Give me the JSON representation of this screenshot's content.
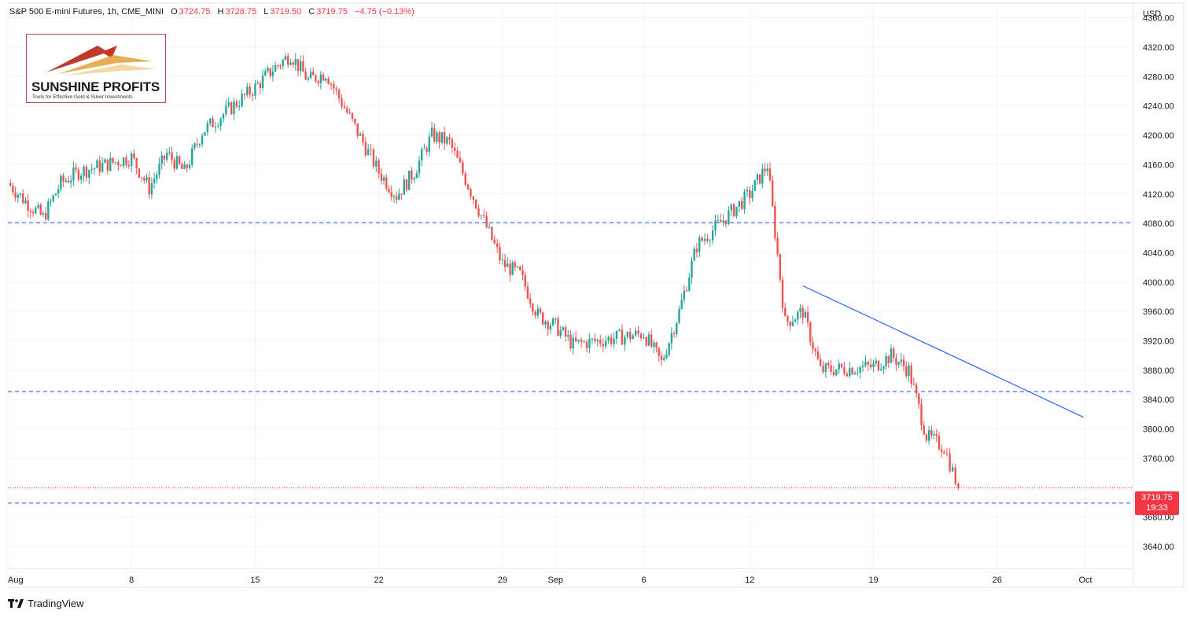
{
  "header": {
    "title": "S&P 500 E-mini Futures, 1h, CME_MINI",
    "open_label": "O",
    "open": "3724.75",
    "high_label": "H",
    "high": "3728.75",
    "low_label": "L",
    "low": "3719.50",
    "close_label": "C",
    "close": "3719.75",
    "change": "−4.75 (−0.13%)"
  },
  "logo": {
    "name": "SUNSHINE PROFITS",
    "tagline": "Tools for Effective Gold & Silver Investments"
  },
  "footer": {
    "brand": "TradingView"
  },
  "price_badge": {
    "price": "3719.75",
    "countdown": "19:33"
  },
  "colors": {
    "up": "#26a69a",
    "down": "#ef5350",
    "line": "#2962ff",
    "level": "#1e53e5",
    "badge": "#f23645"
  },
  "chart_data": {
    "type": "candlestick",
    "currency_label": "USD",
    "ylim": [
      3610,
      4380
    ],
    "y_ticks": [
      "3640.00",
      "3680.00",
      "3760.00",
      "3800.00",
      "3840.00",
      "3880.00",
      "3920.00",
      "3960.00",
      "4000.00",
      "4040.00",
      "4080.00",
      "4120.00",
      "4160.00",
      "4200.00",
      "4240.00",
      "4280.00",
      "4320.00",
      "4360.00"
    ],
    "x_ticks": [
      "Aug",
      "8",
      "15",
      "22",
      "29",
      "Sep",
      "6",
      "12",
      "19",
      "26",
      "Oct"
    ],
    "horizontal_levels": [
      4081,
      3851,
      3699
    ],
    "last_price": 3719.75,
    "trendline": {
      "from": [
        "Sep 15",
        3995
      ],
      "to": [
        "Sep 30",
        3816
      ]
    },
    "path_keypoints": [
      [
        "Aug 1",
        4135
      ],
      [
        "Aug 2",
        4110
      ],
      [
        "Aug 3",
        4088
      ],
      [
        "Aug 4",
        4135
      ],
      [
        "Aug 5",
        4150
      ],
      [
        "Aug 8",
        4170
      ],
      [
        "Aug 9",
        4128
      ],
      [
        "Aug 10",
        4175
      ],
      [
        "Aug 11",
        4150
      ],
      [
        "Aug 12",
        4205
      ],
      [
        "Aug 15",
        4265
      ],
      [
        "Aug 16",
        4290
      ],
      [
        "Aug 17",
        4310
      ],
      [
        "Aug 18",
        4275
      ],
      [
        "Aug 19",
        4285
      ],
      [
        "Aug 22",
        4150
      ],
      [
        "Aug 23",
        4118
      ],
      [
        "Aug 24",
        4150
      ],
      [
        "Aug 25",
        4200
      ],
      [
        "Aug 26",
        4190
      ],
      [
        "Aug 29",
        4025
      ],
      [
        "Aug 30",
        4010
      ],
      [
        "Aug 31",
        3955
      ],
      [
        "Sep 1",
        3940
      ],
      [
        "Sep 2",
        3915
      ],
      [
        "Sep 6",
        3930
      ],
      [
        "Sep 7",
        3890
      ],
      [
        "Sep 8",
        3960
      ],
      [
        "Sep 9",
        4050
      ],
      [
        "Sep 12",
        4120
      ],
      [
        "Sep 13",
        4160
      ],
      [
        "Sep 14",
        3945
      ],
      [
        "Sep 15",
        3960
      ],
      [
        "Sep 16",
        3880
      ],
      [
        "Sep 19",
        3885
      ],
      [
        "Sep 20",
        3900
      ],
      [
        "Sep 21",
        3880
      ],
      [
        "Sep 22",
        3790
      ],
      [
        "Sep 23",
        3775
      ],
      [
        "Sep 23 end",
        3719.75
      ]
    ]
  }
}
